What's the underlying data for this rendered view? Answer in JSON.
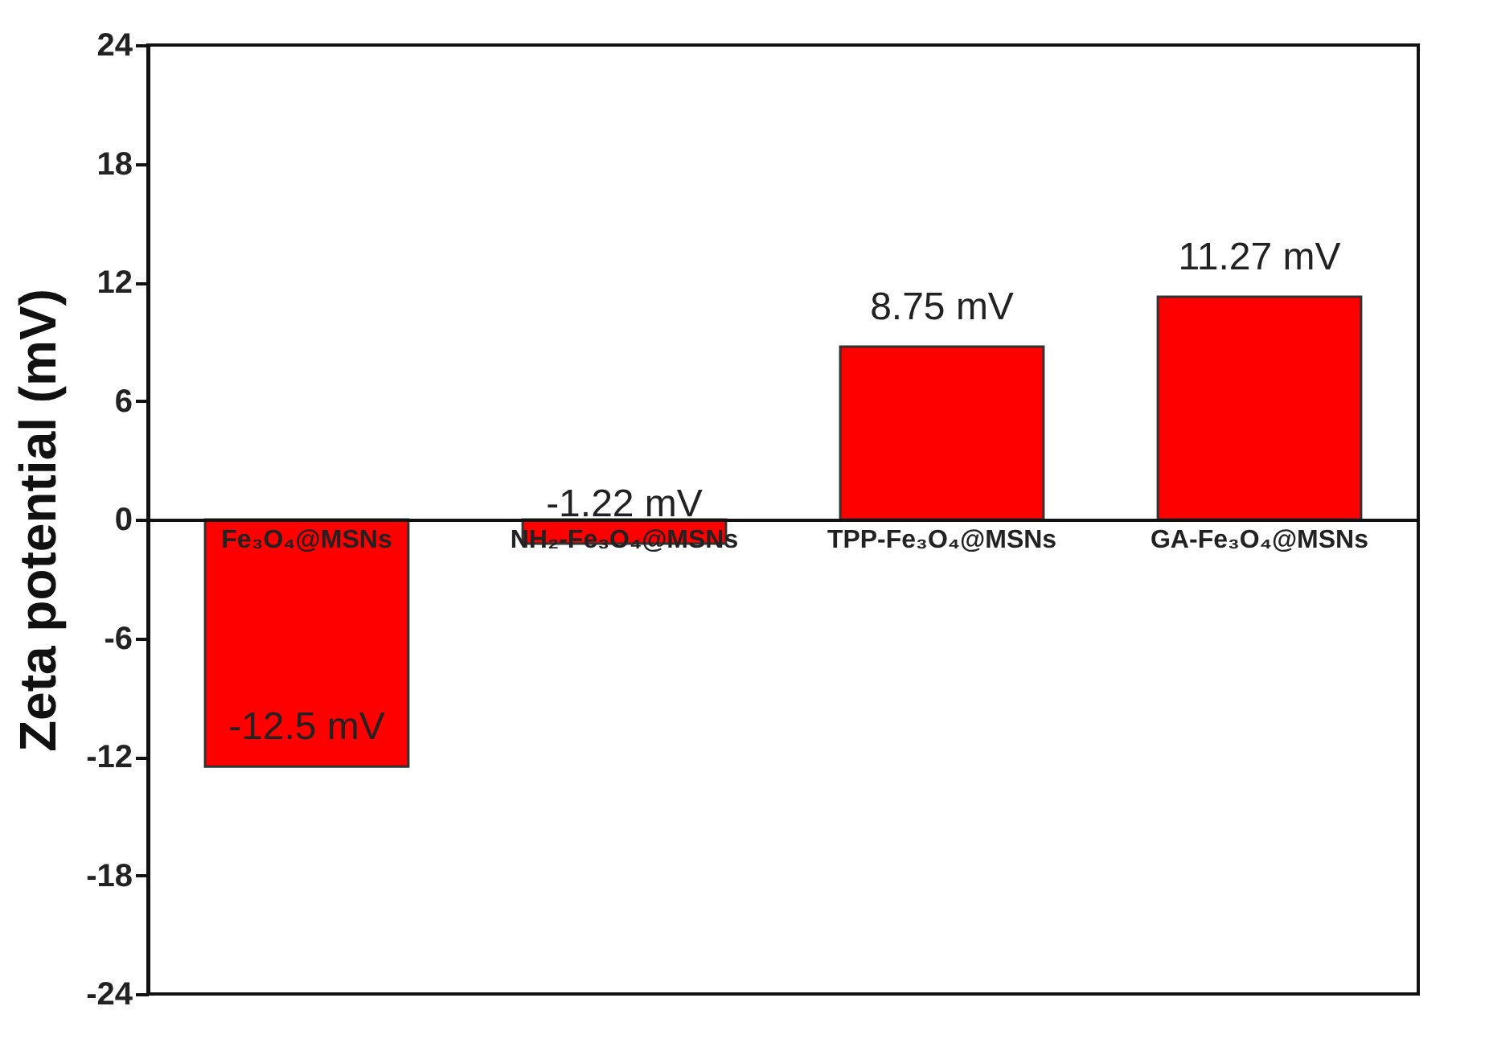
{
  "chart_data": {
    "type": "bar",
    "ylabel": "Zeta potential (mV)",
    "categories": [
      "Fe₃O₄@MSNs",
      "NH₂-Fe₃O₄@MSNs",
      "TPP-Fe₃O₄@MSNs",
      "GA-Fe₃O₄@MSNs"
    ],
    "values": [
      -12.5,
      -1.22,
      8.75,
      11.27
    ],
    "value_labels": [
      "-12.5 mV",
      "-1.22 mV",
      "8.75 mV",
      "11.27 mV"
    ],
    "color": "#ff0000",
    "ylim": [
      -24,
      24
    ],
    "yticks": [
      -24,
      -18,
      -12,
      -6,
      0,
      6,
      12,
      18,
      24
    ],
    "grid": false
  }
}
